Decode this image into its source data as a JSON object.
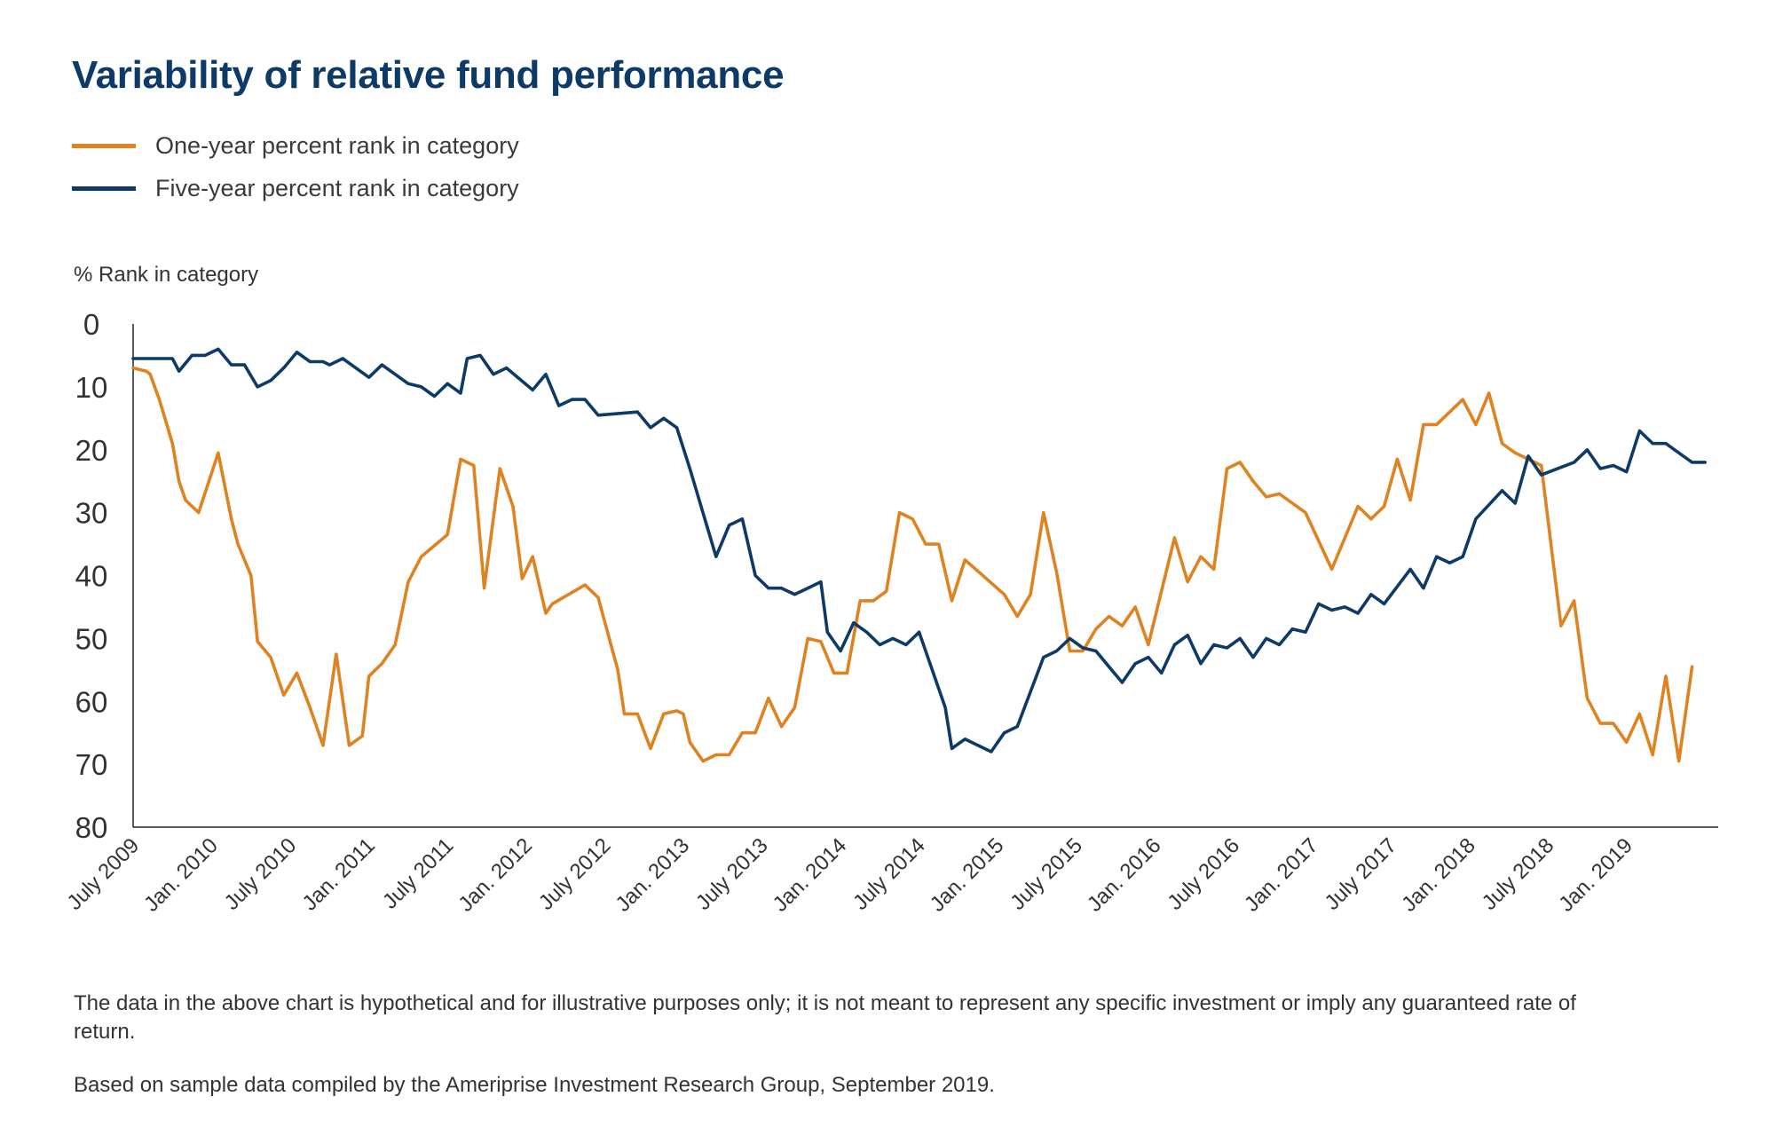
{
  "title": "Variability of relative fund performance",
  "colors": {
    "one_year": "#de8320",
    "five_year": "#0d3a66",
    "title": "#0d3a66"
  },
  "footnotes": [
    "The data in the above chart is hypothetical and for illustrative purposes only; it is not meant to represent any specific investment or imply any guaranteed rate of return.",
    "Based on sample data compiled by the Ameriprise Investment Research Group, September 2019."
  ],
  "chart_data": {
    "type": "line",
    "ylabel": "% Rank in category",
    "xlabel": "",
    "ylim": [
      0,
      80
    ],
    "y_inverted": true,
    "yticks": [
      0,
      10,
      20,
      30,
      40,
      50,
      60,
      70,
      80
    ],
    "xlim": [
      0,
      121
    ],
    "x_tick_positions": [
      0,
      6,
      12,
      18,
      24,
      30,
      36,
      42,
      48,
      54,
      60,
      66,
      72,
      78,
      84,
      90,
      96,
      102,
      108,
      114
    ],
    "x_tick_labels": [
      "July 2009",
      "Jan. 2010",
      "July 2010",
      "Jan. 2011",
      "July 2011",
      "Jan. 2012",
      "July 2012",
      "Jan. 2013",
      "July 2013",
      "Jan. 2014",
      "July 2014",
      "Jan. 2015",
      "July 2015",
      "Jan. 2016",
      "July 2016",
      "Jan. 2017",
      "July 2017",
      "Jan. 2018",
      "July 2018",
      "Jan. 2019"
    ],
    "x_note": "x values are months since July 2009",
    "legend_position": "top-left",
    "series": [
      {
        "name": "One-year percent rank in category",
        "color": "#de8320",
        "points": [
          [
            0,
            7
          ],
          [
            1,
            7.5
          ],
          [
            1.3,
            8
          ],
          [
            2,
            12
          ],
          [
            3,
            19
          ],
          [
            3.5,
            25
          ],
          [
            4,
            28
          ],
          [
            5,
            30
          ],
          [
            6.5,
            20.5
          ],
          [
            7.5,
            31
          ],
          [
            8,
            35
          ],
          [
            9,
            40
          ],
          [
            9.5,
            50.5
          ],
          [
            10.5,
            53
          ],
          [
            11.5,
            59
          ],
          [
            12.5,
            55.5
          ],
          [
            13.5,
            61
          ],
          [
            14.5,
            67
          ],
          [
            15.5,
            52.5
          ],
          [
            16.5,
            67
          ],
          [
            17.5,
            65.5
          ],
          [
            18,
            56
          ],
          [
            19,
            54
          ],
          [
            20,
            51
          ],
          [
            21,
            41
          ],
          [
            22,
            37
          ],
          [
            24,
            33.5
          ],
          [
            25,
            21.5
          ],
          [
            26,
            22.5
          ],
          [
            26.8,
            42
          ],
          [
            28,
            23
          ],
          [
            29,
            29
          ],
          [
            29.7,
            40.5
          ],
          [
            30.5,
            37
          ],
          [
            31.5,
            46
          ],
          [
            32,
            44.5
          ],
          [
            34.5,
            41.5
          ],
          [
            35.5,
            43.5
          ],
          [
            37,
            55
          ],
          [
            37.5,
            62
          ],
          [
            38.5,
            62
          ],
          [
            39.5,
            67.5
          ],
          [
            40.5,
            62
          ],
          [
            41.5,
            61.5
          ],
          [
            42,
            62
          ],
          [
            42.5,
            66.5
          ],
          [
            43.5,
            69.5
          ],
          [
            44.5,
            68.5
          ],
          [
            45.5,
            68.5
          ],
          [
            46.5,
            65
          ],
          [
            47.5,
            65
          ],
          [
            48.5,
            59.5
          ],
          [
            49.5,
            64
          ],
          [
            50.5,
            61
          ],
          [
            51.5,
            50
          ],
          [
            52.5,
            50.5
          ],
          [
            53.5,
            55.5
          ],
          [
            54.5,
            55.5
          ],
          [
            55.5,
            44
          ],
          [
            56.5,
            44
          ],
          [
            57.5,
            42.5
          ],
          [
            58.5,
            30
          ],
          [
            59.5,
            31
          ],
          [
            60.5,
            35
          ],
          [
            61.5,
            35
          ],
          [
            62.5,
            44
          ],
          [
            63.5,
            37.5
          ],
          [
            66.5,
            43
          ],
          [
            67.5,
            46.5
          ],
          [
            68.5,
            43
          ],
          [
            69.5,
            30
          ],
          [
            70.5,
            39.5
          ],
          [
            71.5,
            52
          ],
          [
            72.5,
            52
          ],
          [
            73.5,
            48.5
          ],
          [
            74.5,
            46.5
          ],
          [
            75.5,
            48
          ],
          [
            76.5,
            45
          ],
          [
            77.5,
            51
          ],
          [
            79.5,
            34
          ],
          [
            80.5,
            41
          ],
          [
            81.5,
            37
          ],
          [
            82.5,
            39
          ],
          [
            83.5,
            23
          ],
          [
            84.5,
            22
          ],
          [
            85.5,
            25
          ],
          [
            86.5,
            27.5
          ],
          [
            87.5,
            27
          ],
          [
            89.5,
            30
          ],
          [
            91.5,
            39
          ],
          [
            93.5,
            29
          ],
          [
            94.5,
            31
          ],
          [
            95.5,
            29
          ],
          [
            96.5,
            21.5
          ],
          [
            97.5,
            28
          ],
          [
            98.5,
            16
          ],
          [
            99.5,
            16
          ],
          [
            101.5,
            12
          ],
          [
            102.5,
            16
          ],
          [
            103.5,
            11
          ],
          [
            104.5,
            19
          ],
          [
            105.5,
            20.5
          ],
          [
            106.5,
            21.5
          ],
          [
            107.5,
            22.5
          ],
          [
            109,
            48
          ],
          [
            110,
            44
          ],
          [
            111,
            59.5
          ],
          [
            112,
            63.5
          ],
          [
            113,
            63.5
          ],
          [
            114,
            66.5
          ],
          [
            115,
            62
          ],
          [
            116,
            68.5
          ],
          [
            117,
            56
          ],
          [
            118,
            69.5
          ],
          [
            119,
            54.5
          ]
        ]
      },
      {
        "name": "Five-year percent rank in category",
        "color": "#0d3a66",
        "points": [
          [
            0,
            5.5
          ],
          [
            1,
            5.5
          ],
          [
            2,
            5.5
          ],
          [
            3,
            5.5
          ],
          [
            3.5,
            7.5
          ],
          [
            4.5,
            5
          ],
          [
            5.5,
            5
          ],
          [
            6.5,
            4
          ],
          [
            7.5,
            6.5
          ],
          [
            8.5,
            6.5
          ],
          [
            9.5,
            10
          ],
          [
            10.5,
            9
          ],
          [
            11.5,
            7
          ],
          [
            12.5,
            4.5
          ],
          [
            13.5,
            6
          ],
          [
            14.5,
            6
          ],
          [
            15,
            6.5
          ],
          [
            16,
            5.5
          ],
          [
            18,
            8.5
          ],
          [
            19,
            6.5
          ],
          [
            20,
            8
          ],
          [
            21,
            9.5
          ],
          [
            22,
            10
          ],
          [
            23,
            11.5
          ],
          [
            24,
            9.5
          ],
          [
            25,
            11
          ],
          [
            25.5,
            5.5
          ],
          [
            26.5,
            5
          ],
          [
            27.5,
            8
          ],
          [
            28.5,
            7
          ],
          [
            30.5,
            10.5
          ],
          [
            31.5,
            8
          ],
          [
            32.5,
            13
          ],
          [
            33.5,
            12
          ],
          [
            34.5,
            12
          ],
          [
            35.5,
            14.5
          ],
          [
            38.5,
            14
          ],
          [
            39.5,
            16.5
          ],
          [
            40.5,
            15
          ],
          [
            41.5,
            16.5
          ],
          [
            42.5,
            23
          ],
          [
            44.5,
            37
          ],
          [
            45.5,
            32
          ],
          [
            46.5,
            31
          ],
          [
            47.5,
            40
          ],
          [
            48.5,
            42
          ],
          [
            49.5,
            42
          ],
          [
            50.5,
            43
          ],
          [
            51.5,
            42
          ],
          [
            52.5,
            41
          ],
          [
            53,
            49
          ],
          [
            54,
            52
          ],
          [
            55,
            47.5
          ],
          [
            56,
            49
          ],
          [
            57,
            51
          ],
          [
            58,
            50
          ],
          [
            59,
            51
          ],
          [
            60,
            49
          ],
          [
            61,
            55
          ],
          [
            62,
            61
          ],
          [
            62.5,
            67.5
          ],
          [
            63.5,
            66
          ],
          [
            64.5,
            67
          ],
          [
            65.5,
            68
          ],
          [
            66.5,
            65
          ],
          [
            67.5,
            64
          ],
          [
            69.5,
            53
          ],
          [
            70.5,
            52
          ],
          [
            71.5,
            50
          ],
          [
            72.5,
            51.5
          ],
          [
            73.5,
            52
          ],
          [
            74.5,
            54.5
          ],
          [
            75.5,
            57
          ],
          [
            76.5,
            54
          ],
          [
            77.5,
            53
          ],
          [
            78.5,
            55.5
          ],
          [
            79.5,
            51
          ],
          [
            80.5,
            49.5
          ],
          [
            81.5,
            54
          ],
          [
            82.5,
            51
          ],
          [
            83.5,
            51.5
          ],
          [
            84.5,
            50
          ],
          [
            85.5,
            53
          ],
          [
            86.5,
            50
          ],
          [
            87.5,
            51
          ],
          [
            88.5,
            48.5
          ],
          [
            89.5,
            49
          ],
          [
            90.5,
            44.5
          ],
          [
            91.5,
            45.5
          ],
          [
            92.5,
            45
          ],
          [
            93.5,
            46
          ],
          [
            94.5,
            43
          ],
          [
            95.5,
            44.5
          ],
          [
            97.5,
            39
          ],
          [
            98.5,
            42
          ],
          [
            99.5,
            37
          ],
          [
            100.5,
            38
          ],
          [
            101.5,
            37
          ],
          [
            102.5,
            31
          ],
          [
            104.5,
            26.5
          ],
          [
            105.5,
            28.5
          ],
          [
            106.5,
            21
          ],
          [
            107.5,
            24
          ],
          [
            110,
            22
          ],
          [
            111,
            20
          ],
          [
            112,
            23
          ],
          [
            113,
            22.5
          ],
          [
            114,
            23.5
          ],
          [
            115,
            17
          ],
          [
            116,
            19
          ],
          [
            117,
            19
          ],
          [
            118,
            20.5
          ],
          [
            119,
            22
          ],
          [
            120,
            22
          ]
        ]
      }
    ]
  }
}
